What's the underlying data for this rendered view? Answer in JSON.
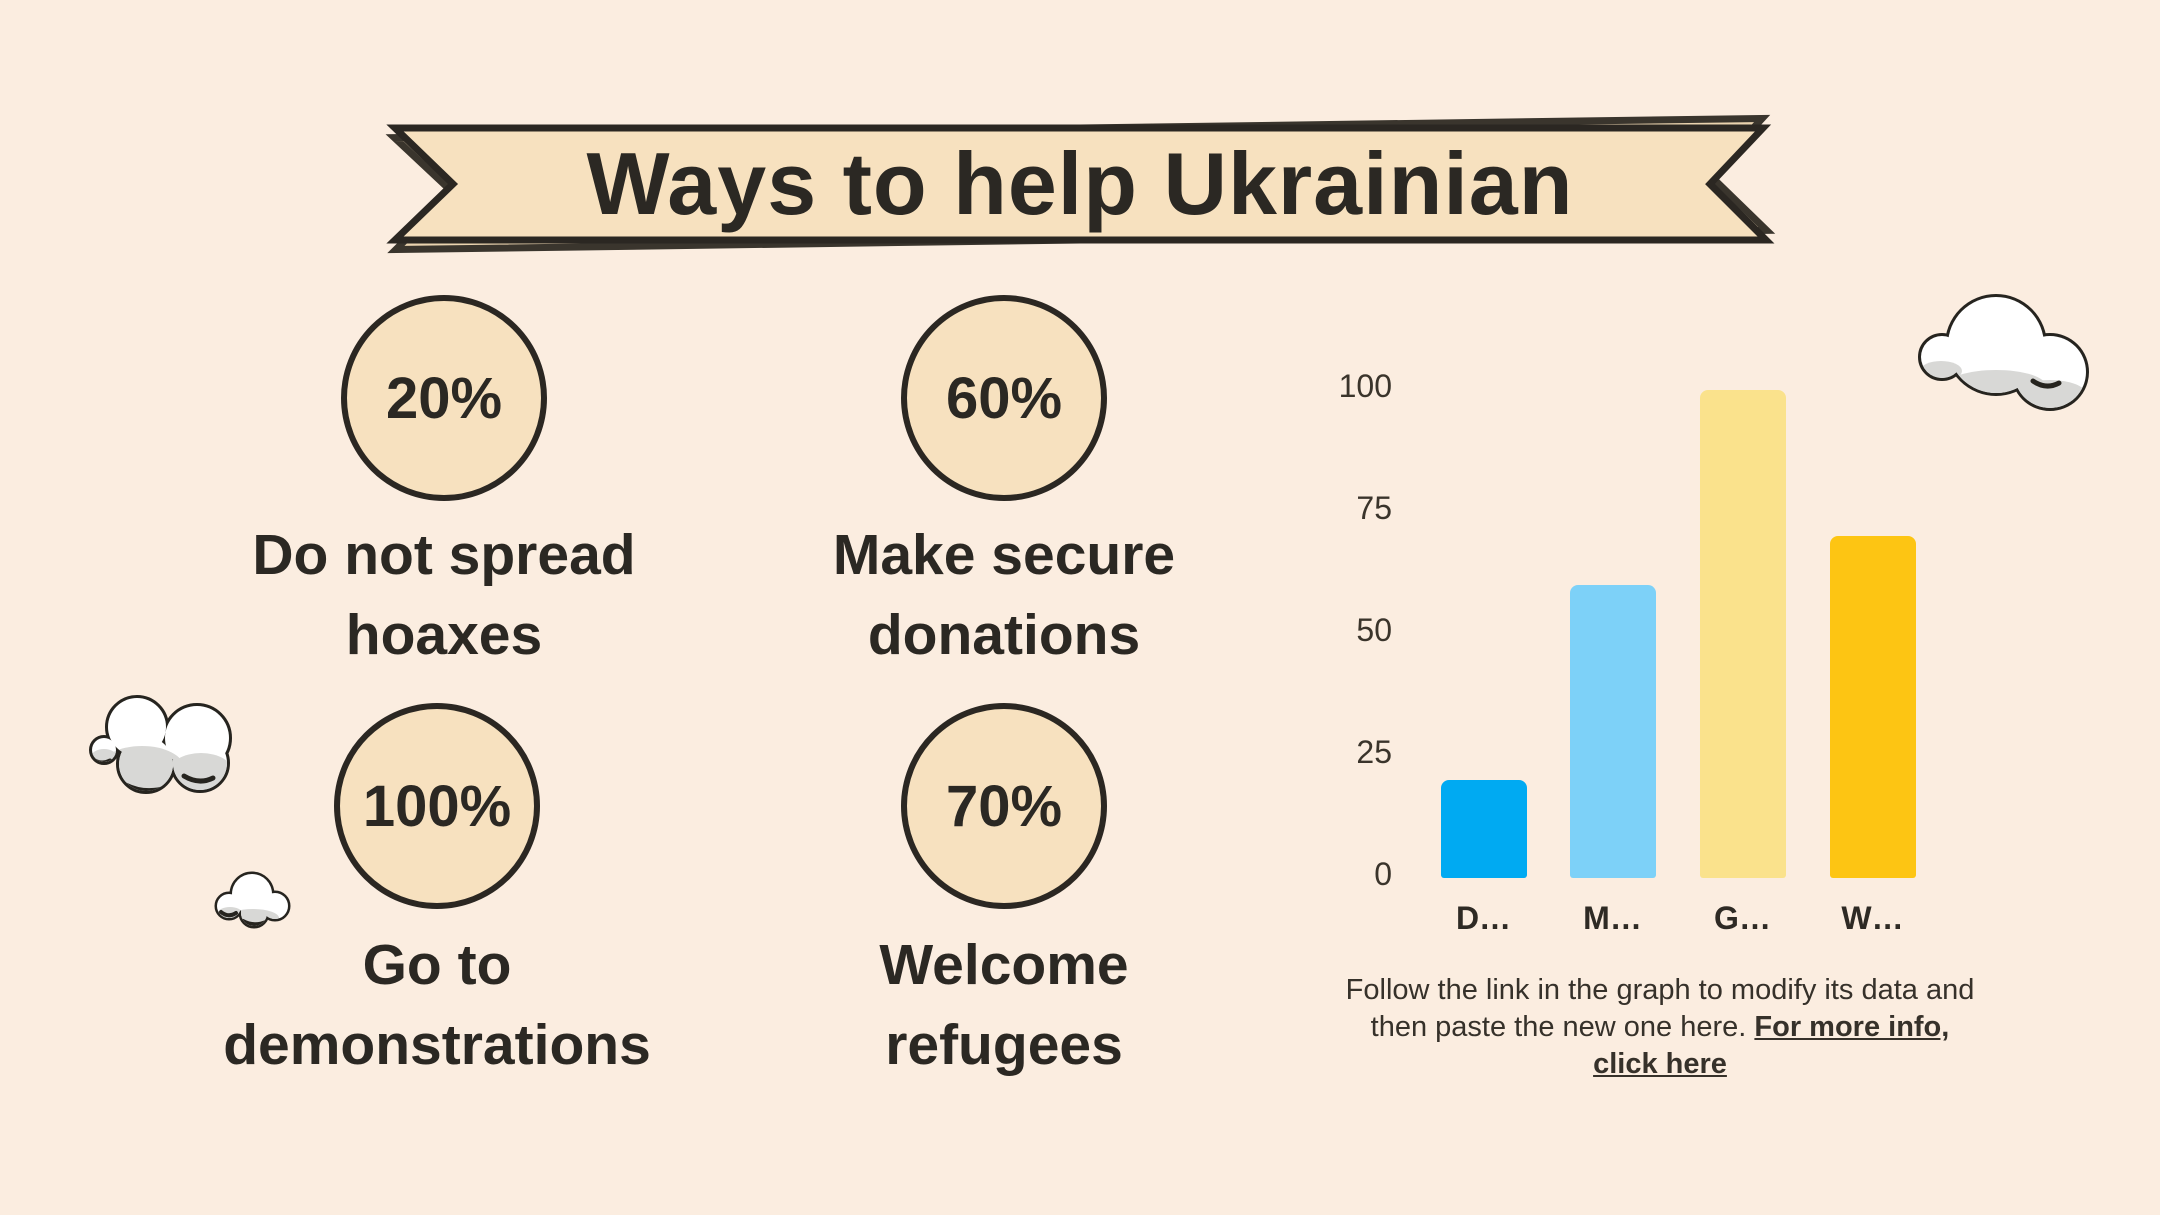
{
  "title": "Ways to help Ukrainian",
  "circles": [
    {
      "percent": "20%",
      "label_line1": "Do not spread",
      "label_line2": "hoaxes"
    },
    {
      "percent": "60%",
      "label_line1": "Make secure",
      "label_line2": "donations"
    },
    {
      "percent": "100%",
      "label_line1": "Go to",
      "label_line2": "demonstrations"
    },
    {
      "percent": "70%",
      "label_line1": "Welcome",
      "label_line2": "refugees"
    }
  ],
  "chart_data": {
    "type": "bar",
    "categories": [
      "D…",
      "M…",
      "G…",
      "W…"
    ],
    "values": [
      20,
      60,
      100,
      70
    ],
    "bar_colors": [
      "#00AAF2",
      "#7DD1F8",
      "#FAE28C",
      "#FDC513"
    ],
    "yticks": [
      0,
      25,
      50,
      75,
      100
    ],
    "ylim": [
      0,
      100
    ],
    "grid": false,
    "legend": "none",
    "title": "",
    "xlabel": "",
    "ylabel": ""
  },
  "note": {
    "text": "Follow the link in the graph to modify its data and then paste the new one here.",
    "link_text": "For more info, click here"
  },
  "colors": {
    "background": "#FBEDE0",
    "shape_fill": "#F7E1BF",
    "shape_shadow": "#EAD3AF",
    "outline": "#2B2722",
    "text": "#2B2823"
  }
}
